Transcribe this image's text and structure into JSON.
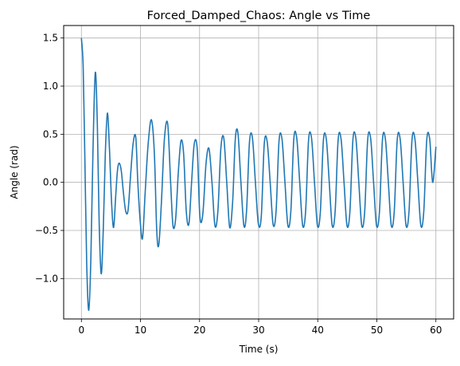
{
  "chart_data": {
    "type": "line",
    "title": "Forced_Damped_Chaos: Angle vs Time",
    "xlabel": "Time (s)",
    "ylabel": "Angle (rad)",
    "xlim": [
      -3,
      63
    ],
    "ylim": [
      -1.42,
      1.63
    ],
    "xticks": [
      0,
      10,
      20,
      30,
      40,
      50,
      60
    ],
    "xtick_labels": [
      "0",
      "10",
      "20",
      "30",
      "40",
      "50",
      "60"
    ],
    "yticks": [
      -1.0,
      -0.5,
      0.0,
      0.5,
      1.0,
      1.5
    ],
    "ytick_labels": [
      "−1.0",
      "−0.5",
      "0.0",
      "0.5",
      "1.0",
      "1.5"
    ],
    "grid": true,
    "colors": {
      "line": "#1f77b4",
      "grid": "#b0b0b0",
      "axes": "#000000"
    },
    "series": [
      {
        "x": [
          0.0,
          0.3,
          0.6,
          0.9,
          1.25,
          1.6,
          1.95,
          2.35,
          2.7,
          3.0,
          3.35,
          3.7,
          4.05,
          4.4,
          4.75,
          5.1,
          5.45,
          5.8,
          6.1,
          6.4,
          6.75,
          7.1,
          7.5,
          7.9,
          8.3,
          8.75,
          9.2,
          9.55,
          9.95,
          10.35,
          10.8,
          11.3,
          11.85,
          12.35,
          12.75,
          13.1,
          13.55,
          14.05,
          14.6,
          15.1,
          15.5,
          15.95,
          16.4,
          16.85,
          17.3,
          17.75,
          18.2,
          18.65,
          19.1,
          19.6,
          20.05,
          20.55,
          21.1,
          21.6,
          22.1,
          22.6,
          23.1,
          23.6,
          24.1,
          24.6,
          25.1,
          25.6,
          26.05,
          26.5,
          27.0,
          27.5,
          27.95,
          28.45,
          28.95,
          29.45,
          29.95,
          30.45,
          30.95,
          31.45,
          31.95,
          32.45,
          32.95,
          33.45,
          33.95,
          34.45,
          34.95,
          35.45,
          35.95,
          36.45,
          36.95,
          37.45,
          37.95,
          38.45,
          38.95,
          39.45,
          39.95,
          40.45,
          40.95,
          41.45,
          41.95,
          42.45,
          42.95,
          43.45,
          43.95,
          44.45,
          44.95,
          45.45,
          45.95,
          46.45,
          46.95,
          47.45,
          47.95,
          48.45,
          48.95,
          49.45,
          49.95,
          50.45,
          50.95,
          51.45,
          51.95,
          52.45,
          52.95,
          53.45,
          53.95,
          54.45,
          54.95,
          55.45,
          55.95,
          56.45,
          56.95,
          57.45,
          57.95,
          58.45,
          58.95,
          59.45,
          60.0
        ],
        "y": [
          1.5,
          1.2,
          0.2,
          -0.85,
          -1.33,
          -0.8,
          0.3,
          1.14,
          0.6,
          -0.4,
          -0.95,
          -0.5,
          0.3,
          0.72,
          0.35,
          -0.2,
          -0.47,
          -0.15,
          0.12,
          0.2,
          0.12,
          -0.1,
          -0.3,
          -0.29,
          0.05,
          0.4,
          0.47,
          0.0,
          -0.4,
          -0.58,
          -0.1,
          0.4,
          0.65,
          0.3,
          -0.5,
          -0.65,
          -0.2,
          0.45,
          0.61,
          0.0,
          -0.45,
          -0.38,
          0.1,
          0.43,
          0.3,
          -0.3,
          -0.43,
          0.0,
          0.4,
          0.35,
          -0.35,
          -0.33,
          0.2,
          0.35,
          0.0,
          -0.45,
          -0.3,
          0.35,
          0.46,
          0.0,
          -0.47,
          -0.2,
          0.45,
          0.51,
          0.0,
          -0.45,
          -0.3,
          0.42,
          0.46,
          0.0,
          -0.43,
          -0.35,
          0.4,
          0.42,
          0.0,
          -0.44,
          -0.3,
          0.43,
          0.45,
          0.0,
          -0.45,
          -0.3,
          0.45,
          0.46,
          0.0,
          -0.45,
          -0.3,
          0.44,
          0.46,
          0.0,
          -0.45,
          -0.3,
          0.43,
          0.45,
          0.0,
          -0.45,
          -0.3,
          0.44,
          0.45,
          0.0,
          -0.45,
          -0.3,
          0.44,
          0.46,
          0.0,
          -0.45,
          -0.3,
          0.44,
          0.46,
          0.0,
          -0.45,
          -0.3,
          0.44,
          0.45,
          0.0,
          -0.45,
          -0.3,
          0.44,
          0.45,
          0.0,
          -0.45,
          -0.3,
          0.44,
          0.45,
          0.0,
          -0.45,
          -0.3,
          0.44,
          0.45,
          0.0,
          0.37
        ]
      }
    ]
  }
}
